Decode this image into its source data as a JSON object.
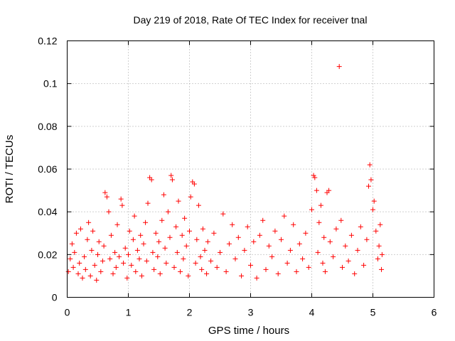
{
  "chart_data": {
    "type": "scatter",
    "title": "Day 219 of 2018, Rate Of TEC Index for receiver tnal",
    "xlabel": "GPS time / hours",
    "ylabel": "ROTI / TECUs",
    "xlim": [
      0,
      6
    ],
    "ylim": [
      0,
      0.12
    ],
    "xticks": [
      0,
      1,
      2,
      3,
      4,
      5,
      6
    ],
    "yticks": [
      0,
      0.02,
      0.04,
      0.06,
      0.08,
      0.1,
      0.12
    ],
    "xtick_labels": [
      "0",
      "1",
      "2",
      "3",
      "4",
      "5",
      "6"
    ],
    "ytick_labels": [
      "0",
      "0.02",
      "0.04",
      "0.06",
      "0.08",
      "0.1",
      "0.12"
    ],
    "grid": true,
    "marker": "+",
    "color": "#ff0000",
    "series": [
      {
        "name": "ROTI",
        "description_range": "approx 0.005-0.03 dense band from 0 to 5.15 h",
        "points": [
          [
            0.02,
            0.012
          ],
          [
            0.05,
            0.018
          ],
          [
            0.08,
            0.025
          ],
          [
            0.1,
            0.014
          ],
          [
            0.12,
            0.021
          ],
          [
            0.15,
            0.03
          ],
          [
            0.18,
            0.011
          ],
          [
            0.2,
            0.016
          ],
          [
            0.22,
            0.032
          ],
          [
            0.25,
            0.009
          ],
          [
            0.28,
            0.019
          ],
          [
            0.3,
            0.013
          ],
          [
            0.33,
            0.027
          ],
          [
            0.35,
            0.035
          ],
          [
            0.38,
            0.01
          ],
          [
            0.4,
            0.022
          ],
          [
            0.42,
            0.031
          ],
          [
            0.45,
            0.015
          ],
          [
            0.48,
            0.008
          ],
          [
            0.5,
            0.02
          ],
          [
            0.52,
            0.026
          ],
          [
            0.55,
            0.012
          ],
          [
            0.58,
            0.017
          ],
          [
            0.6,
            0.024
          ],
          [
            0.62,
            0.049
          ],
          [
            0.65,
            0.047
          ],
          [
            0.68,
            0.04
          ],
          [
            0.7,
            0.018
          ],
          [
            0.72,
            0.029
          ],
          [
            0.75,
            0.011
          ],
          [
            0.78,
            0.021
          ],
          [
            0.8,
            0.014
          ],
          [
            0.82,
            0.034
          ],
          [
            0.85,
            0.019
          ],
          [
            0.88,
            0.046
          ],
          [
            0.9,
            0.043
          ],
          [
            0.92,
            0.016
          ],
          [
            0.95,
            0.023
          ],
          [
            0.98,
            0.009
          ],
          [
            1.0,
            0.02
          ],
          [
            1.02,
            0.031
          ],
          [
            1.05,
            0.015
          ],
          [
            1.08,
            0.027
          ],
          [
            1.1,
            0.038
          ],
          [
            1.12,
            0.012
          ],
          [
            1.15,
            0.022
          ],
          [
            1.18,
            0.018
          ],
          [
            1.2,
            0.029
          ],
          [
            1.22,
            0.01
          ],
          [
            1.25,
            0.025
          ],
          [
            1.28,
            0.035
          ],
          [
            1.3,
            0.017
          ],
          [
            1.32,
            0.044
          ],
          [
            1.35,
            0.056
          ],
          [
            1.38,
            0.055
          ],
          [
            1.4,
            0.021
          ],
          [
            1.42,
            0.013
          ],
          [
            1.45,
            0.03
          ],
          [
            1.48,
            0.019
          ],
          [
            1.5,
            0.026
          ],
          [
            1.52,
            0.011
          ],
          [
            1.55,
            0.036
          ],
          [
            1.58,
            0.048
          ],
          [
            1.6,
            0.023
          ],
          [
            1.62,
            0.016
          ],
          [
            1.65,
            0.04
          ],
          [
            1.68,
            0.028
          ],
          [
            1.7,
            0.057
          ],
          [
            1.72,
            0.055
          ],
          [
            1.75,
            0.014
          ],
          [
            1.78,
            0.033
          ],
          [
            1.8,
            0.021
          ],
          [
            1.82,
            0.045
          ],
          [
            1.85,
            0.012
          ],
          [
            1.88,
            0.029
          ],
          [
            1.9,
            0.018
          ],
          [
            1.92,
            0.037
          ],
          [
            1.95,
            0.024
          ],
          [
            1.98,
            0.01
          ],
          [
            2.0,
            0.031
          ],
          [
            2.02,
            0.047
          ],
          [
            2.05,
            0.054
          ],
          [
            2.08,
            0.053
          ],
          [
            2.1,
            0.016
          ],
          [
            2.12,
            0.027
          ],
          [
            2.15,
            0.043
          ],
          [
            2.18,
            0.019
          ],
          [
            2.2,
            0.013
          ],
          [
            2.22,
            0.032
          ],
          [
            2.25,
            0.022
          ],
          [
            2.28,
            0.011
          ],
          [
            2.3,
            0.026
          ],
          [
            2.35,
            0.017
          ],
          [
            2.4,
            0.03
          ],
          [
            2.45,
            0.014
          ],
          [
            2.5,
            0.021
          ],
          [
            2.55,
            0.039
          ],
          [
            2.6,
            0.012
          ],
          [
            2.65,
            0.025
          ],
          [
            2.7,
            0.034
          ],
          [
            2.75,
            0.018
          ],
          [
            2.8,
            0.028
          ],
          [
            2.85,
            0.01
          ],
          [
            2.9,
            0.022
          ],
          [
            2.95,
            0.033
          ],
          [
            3.0,
            0.015
          ],
          [
            3.05,
            0.026
          ],
          [
            3.1,
            0.009
          ],
          [
            3.15,
            0.029
          ],
          [
            3.2,
            0.036
          ],
          [
            3.25,
            0.013
          ],
          [
            3.3,
            0.024
          ],
          [
            3.35,
            0.019
          ],
          [
            3.4,
            0.031
          ],
          [
            3.45,
            0.011
          ],
          [
            3.5,
            0.027
          ],
          [
            3.55,
            0.038
          ],
          [
            3.6,
            0.016
          ],
          [
            3.65,
            0.022
          ],
          [
            3.7,
            0.034
          ],
          [
            3.75,
            0.012
          ],
          [
            3.8,
            0.025
          ],
          [
            3.85,
            0.018
          ],
          [
            3.9,
            0.03
          ],
          [
            3.95,
            0.014
          ],
          [
            4.0,
            0.041
          ],
          [
            4.03,
            0.057
          ],
          [
            4.05,
            0.056
          ],
          [
            4.08,
            0.05
          ],
          [
            4.1,
            0.021
          ],
          [
            4.12,
            0.035
          ],
          [
            4.15,
            0.043
          ],
          [
            4.18,
            0.016
          ],
          [
            4.2,
            0.028
          ],
          [
            4.22,
            0.012
          ],
          [
            4.25,
            0.049
          ],
          [
            4.28,
            0.05
          ],
          [
            4.3,
            0.026
          ],
          [
            4.35,
            0.019
          ],
          [
            4.4,
            0.032
          ],
          [
            4.45,
            0.108
          ],
          [
            4.48,
            0.036
          ],
          [
            4.5,
            0.014
          ],
          [
            4.55,
            0.024
          ],
          [
            4.6,
            0.017
          ],
          [
            4.65,
            0.029
          ],
          [
            4.7,
            0.011
          ],
          [
            4.75,
            0.022
          ],
          [
            4.8,
            0.033
          ],
          [
            4.85,
            0.015
          ],
          [
            4.9,
            0.027
          ],
          [
            4.93,
            0.052
          ],
          [
            4.95,
            0.062
          ],
          [
            4.97,
            0.055
          ],
          [
            5.0,
            0.041
          ],
          [
            5.02,
            0.045
          ],
          [
            5.05,
            0.031
          ],
          [
            5.08,
            0.018
          ],
          [
            5.1,
            0.024
          ],
          [
            5.12,
            0.034
          ],
          [
            5.14,
            0.013
          ],
          [
            5.15,
            0.02
          ]
        ]
      }
    ]
  }
}
